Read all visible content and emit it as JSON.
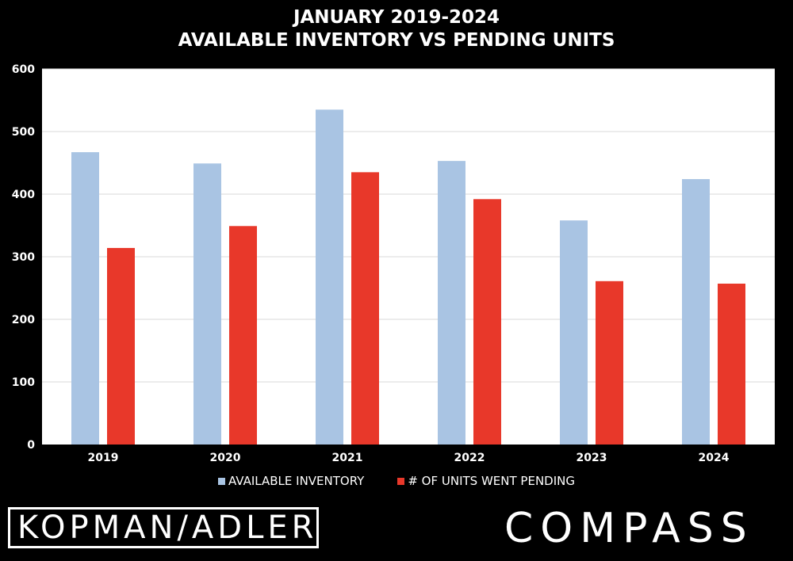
{
  "header": {
    "title_line1": "JANUARY 2019-2024",
    "title_line2": "AVAILABLE INVENTORY VS PENDING UNITS"
  },
  "branding": {
    "left_logo": "KOPMAN/ADLER",
    "right_logo": "COMPASS"
  },
  "colors": {
    "background": "#000000",
    "plot_background": "#ffffff",
    "gridline": "#d9d9d9",
    "inventory": "#a9c4e3",
    "pending": "#e8382a"
  },
  "chart_data": {
    "type": "bar",
    "title": "JANUARY 2019-2024 AVAILABLE INVENTORY VS PENDING UNITS",
    "categories": [
      "2019",
      "2020",
      "2021",
      "2022",
      "2023",
      "2024"
    ],
    "series": [
      {
        "name": "AVAILABLE INVENTORY",
        "values": [
          467,
          449,
          535,
          453,
          358,
          424
        ]
      },
      {
        "name": "# OF UNITS WENT PENDING",
        "values": [
          314,
          349,
          435,
          392,
          261,
          257
        ]
      }
    ],
    "ylim": [
      0,
      600
    ],
    "yticks": [
      0,
      100,
      200,
      300,
      400,
      500,
      600
    ],
    "grid": true,
    "legend_position": "bottom"
  }
}
